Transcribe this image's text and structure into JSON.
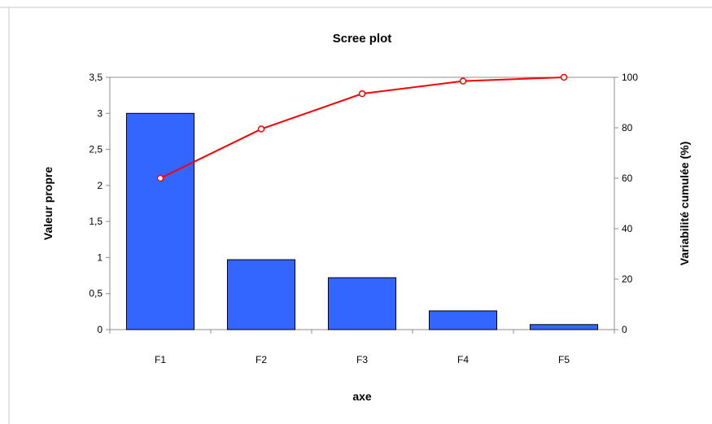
{
  "chart_data": {
    "type": "bar",
    "title": "Scree plot",
    "xlabel": "axe",
    "ylabel": "Valeur propre",
    "y2label": "Variabilité cumulée (%)",
    "categories": [
      "F1",
      "F2",
      "F3",
      "F4",
      "F5"
    ],
    "ylim": [
      0,
      3.5
    ],
    "y2lim": [
      0,
      100
    ],
    "y_ticks": [
      "0",
      "0,5",
      "1",
      "1,5",
      "2",
      "2,5",
      "3",
      "3,5"
    ],
    "y2_ticks": [
      "0",
      "20",
      "40",
      "60",
      "80",
      "100"
    ],
    "series": [
      {
        "type": "bar",
        "axis": "left",
        "color": "#3366ff",
        "values": [
          3.0,
          0.97,
          0.72,
          0.26,
          0.07
        ]
      },
      {
        "type": "line",
        "axis": "right",
        "color": "#ff0000",
        "values": [
          60,
          79.5,
          93.5,
          98.5,
          100
        ]
      }
    ],
    "legend": "none",
    "grid": false
  }
}
